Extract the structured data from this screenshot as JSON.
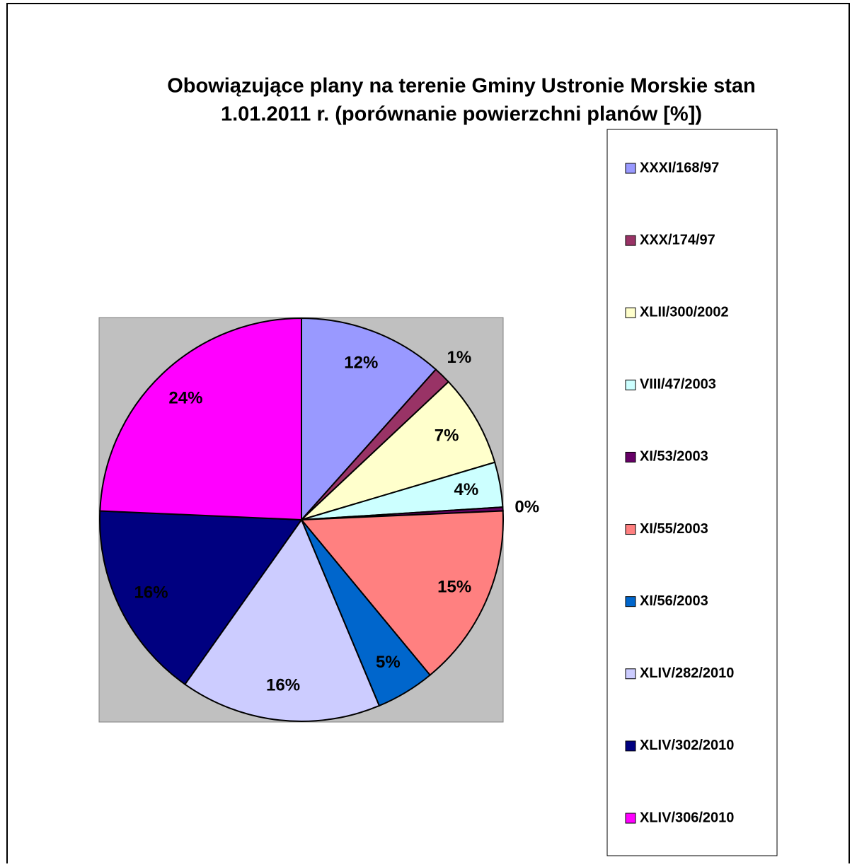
{
  "chart_data": {
    "type": "pie",
    "title": "Obowiązujące plany na terenie Gminy Ustronie Morskie stan 1.01.2011 r. (porównanie powierzchni planów [%])",
    "title_lines": [
      "Obowiązujące plany na terenie Gminy Ustronie Morskie stan",
      "1.01.2011 r. (porównanie powierzchni planów [%])"
    ],
    "categories": [
      "XXXI/168/97",
      "XXX/174/97",
      "XLII/300/2002",
      "VIII/47/2003",
      "XI/53/2003",
      "XI/55/2003",
      "XI/56/2003",
      "XLIV/282/2010",
      "XLIV/302/2010",
      "XLIV/306/2010"
    ],
    "values": [
      11.6,
      1.4,
      7.4,
      3.6,
      0.3,
      14.7,
      4.7,
      16.1,
      15.9,
      24.3
    ],
    "value_labels": [
      "12%",
      "1%",
      "7%",
      "4%",
      "0%",
      "15%",
      "5%",
      "16%",
      "16%",
      "24%"
    ],
    "colors": [
      "#9999ff",
      "#993366",
      "#ffffcc",
      "#ccffff",
      "#660066",
      "#ff8080",
      "#0066cc",
      "#ccccff",
      "#000080",
      "#ff00ff"
    ],
    "legend": "right"
  }
}
